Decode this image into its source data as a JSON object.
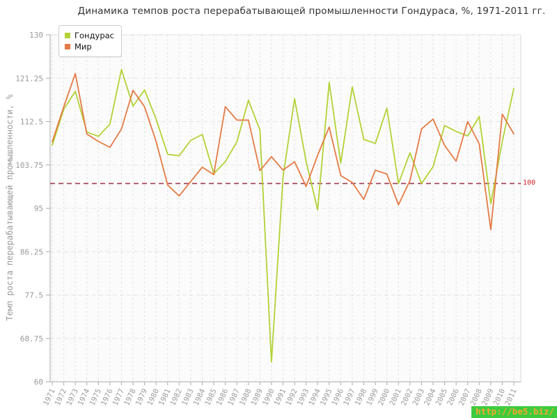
{
  "title": "Динамика темпов роста перерабатывающей промышленности Гондураса, %, 1971-2011 гг.",
  "y_axis_title": "Темп роста перерабатывающей промышленности, %",
  "legend": {
    "items": [
      {
        "id": "honduras",
        "label": "Гондурас",
        "color": "#b2d235"
      },
      {
        "id": "world",
        "label": "Мир",
        "color": "#e57a45"
      }
    ]
  },
  "reference_line": {
    "value": 100,
    "label": "100",
    "color": "#9e3a4d",
    "label_color": "#cc2222"
  },
  "watermark": {
    "text": "http://be5.biz/",
    "bg_color": "#3ecb3e",
    "text_color": "#f2a82e"
  },
  "chart_data": {
    "type": "line",
    "title": "Динамика темпов роста перерабатывающей промышленности Гондураса, %, 1971-2011 гг.",
    "xlabel": "",
    "ylabel": "Темп роста перерабатывающей промышленности, %",
    "ylim": [
      60,
      130
    ],
    "y_ticks": [
      60,
      68.75,
      77.5,
      86.25,
      95,
      103.75,
      112.5,
      121.25,
      130
    ],
    "y_tick_labels": [
      "60",
      "68.75",
      "77.5",
      "86.25",
      "95",
      "103.75",
      "112.5",
      "121.25",
      "130"
    ],
    "grid": true,
    "legend_position": "top-left",
    "x": [
      1971,
      1972,
      1973,
      1974,
      1975,
      1976,
      1977,
      1978,
      1979,
      1980,
      1981,
      1982,
      1983,
      1984,
      1985,
      1986,
      1987,
      1988,
      1989,
      1990,
      1991,
      1992,
      1993,
      1994,
      1995,
      1996,
      1997,
      1998,
      1999,
      2000,
      2001,
      2002,
      2003,
      2004,
      2005,
      2006,
      2007,
      2008,
      2009,
      2010,
      2011
    ],
    "series": [
      {
        "id": "honduras",
        "name": "Гондурас",
        "color": "#b2d235",
        "values": [
          107.7,
          115,
          118.6,
          110.4,
          109.5,
          112,
          123,
          115.6,
          118.9,
          113,
          105.9,
          105.6,
          108.7,
          109.9,
          102,
          104.4,
          108.4,
          116.8,
          110.8,
          64,
          101.3,
          117.1,
          104.5,
          94.7,
          120.4,
          104.1,
          119.5,
          108.9,
          108.1,
          115.2,
          100,
          106.2,
          100,
          103.4,
          111.7,
          110.5,
          109.6,
          113.5,
          95.9,
          108.5,
          119.2
        ]
      },
      {
        "id": "world",
        "name": "Мир",
        "color": "#e57a45",
        "values": [
          108.4,
          115.5,
          122.2,
          110,
          108.5,
          107.3,
          111,
          118.8,
          115.5,
          108.5,
          99.7,
          97.5,
          100.4,
          103.3,
          101.8,
          115.5,
          112.8,
          112.8,
          102.6,
          105.4,
          102.7,
          104.4,
          99.4,
          105.7,
          111.4,
          101.6,
          100.2,
          96.8,
          102.7,
          101.9,
          95.7,
          100.6,
          111,
          113,
          107.7,
          104.5,
          112.5,
          108,
          90.7,
          114,
          110
        ]
      }
    ],
    "reference_value": 100
  }
}
